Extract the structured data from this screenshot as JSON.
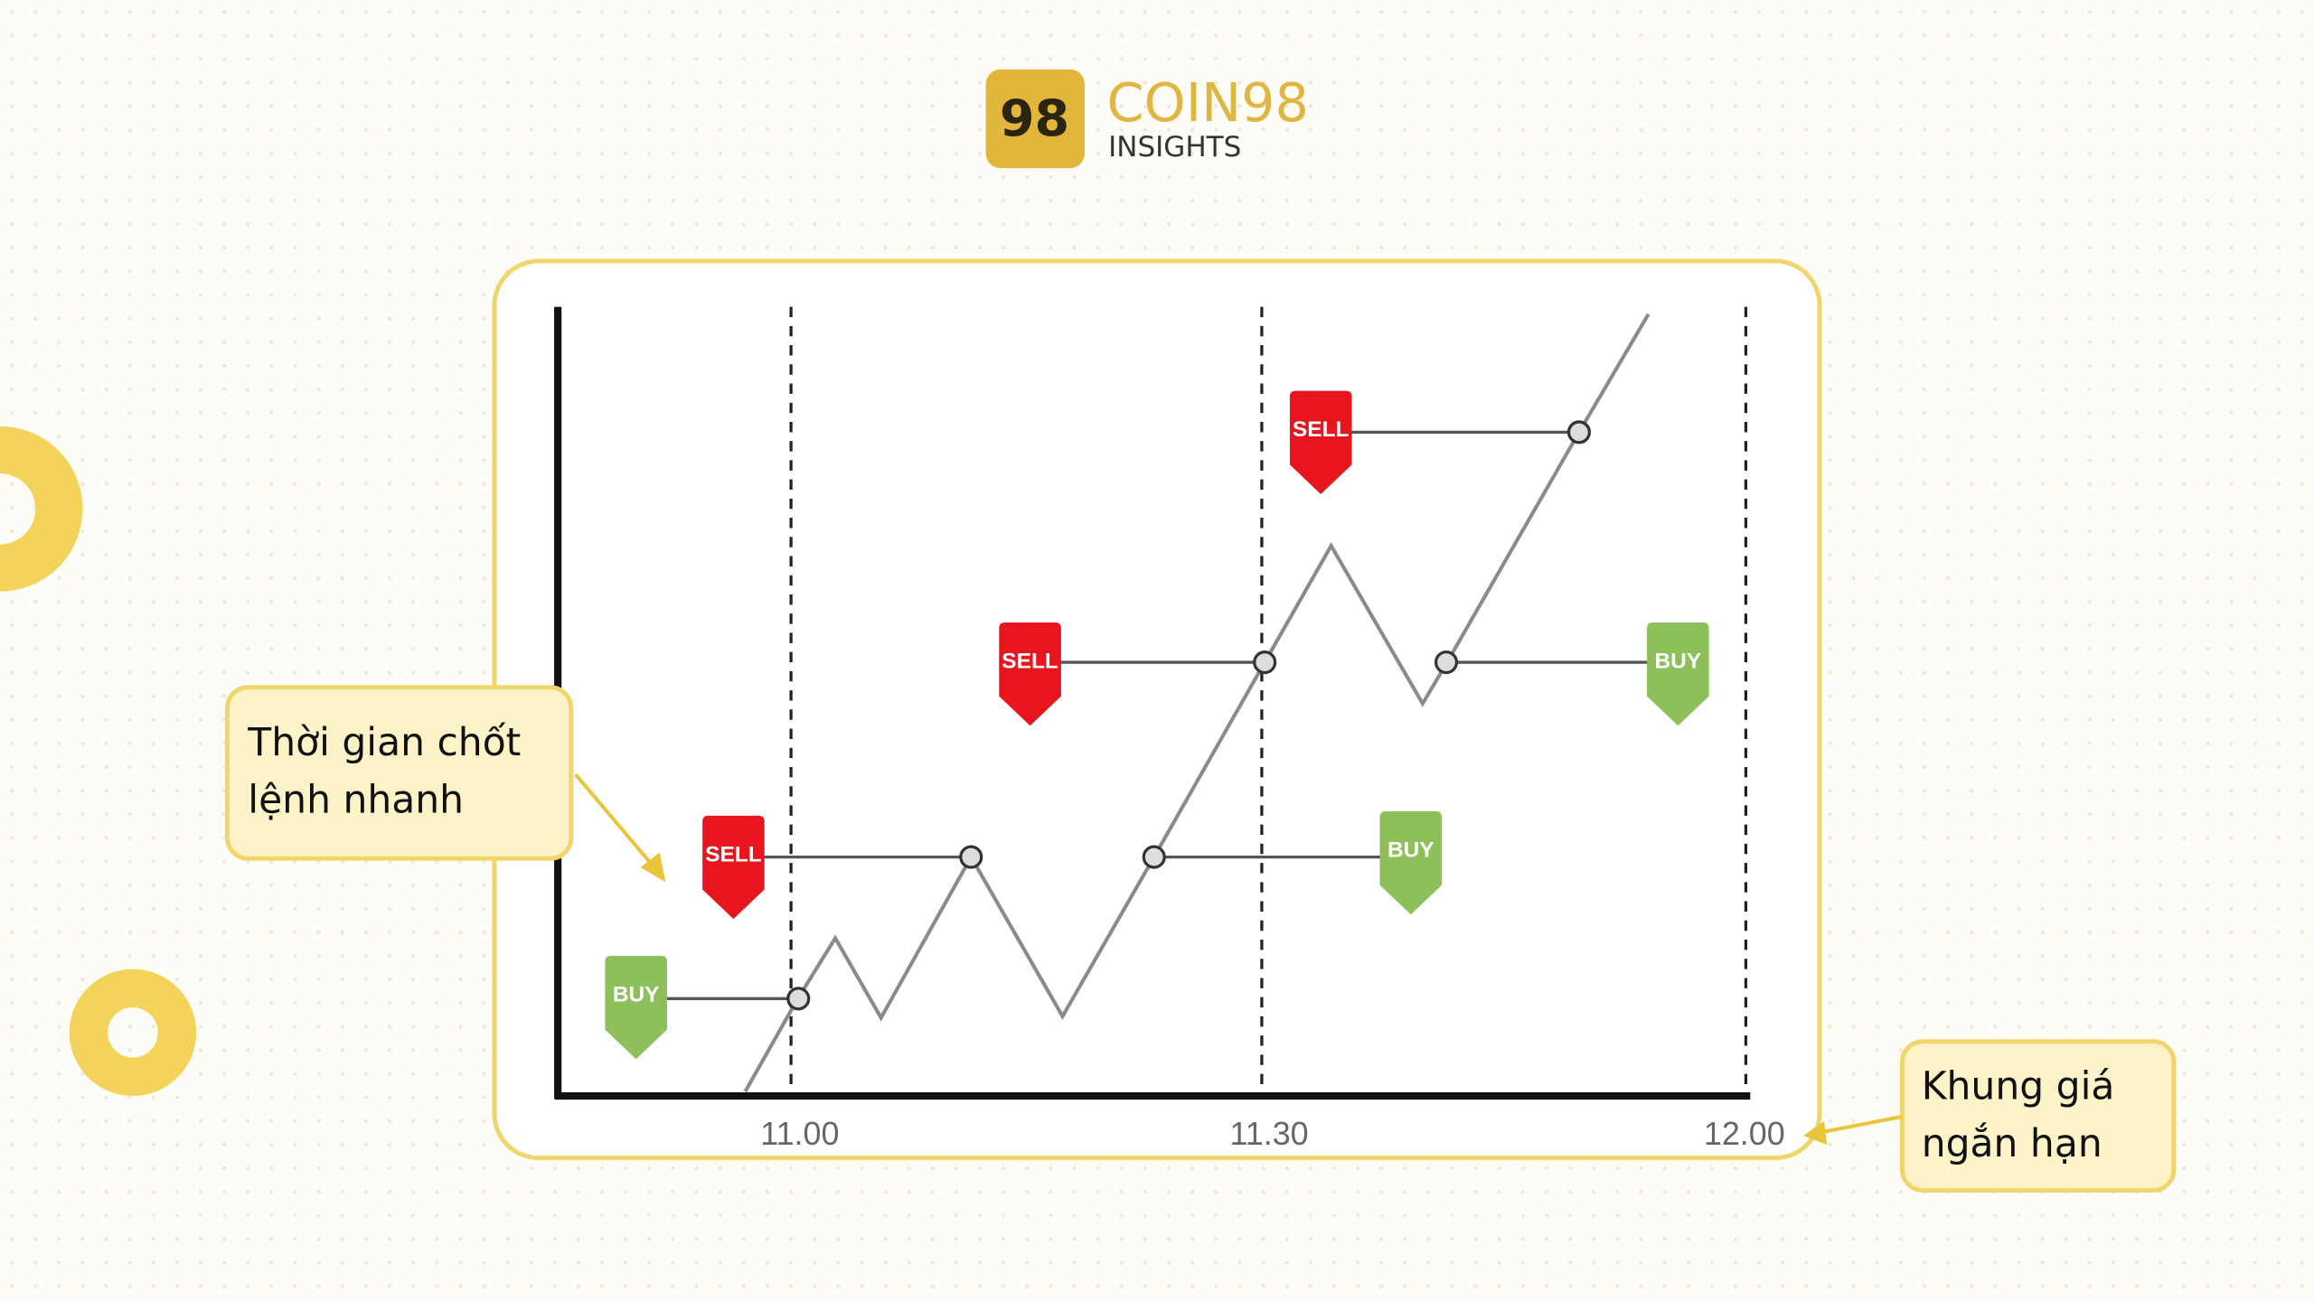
{
  "logo": {
    "mark": "98",
    "brand": "COIN98",
    "sub": "INSIGHTS"
  },
  "axis_labels": [
    "11.00",
    "11.30",
    "12.00"
  ],
  "signals": [
    {
      "label": "BUY"
    },
    {
      "label": "SELL"
    },
    {
      "label": "SELL"
    },
    {
      "label": "SELL"
    },
    {
      "label": "BUY"
    },
    {
      "label": "BUY"
    }
  ],
  "callouts": [
    {
      "lines": [
        "Thời gian chốt",
        "lệnh nhanh"
      ]
    },
    {
      "lines": [
        "Khung giá",
        "ngắn hạn"
      ]
    }
  ]
}
